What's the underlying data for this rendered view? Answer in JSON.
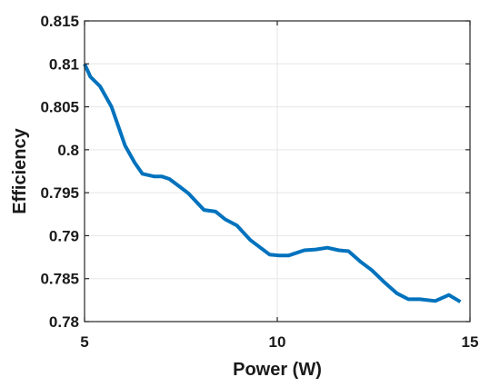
{
  "chart_data": {
    "type": "line",
    "title": "",
    "xlabel": "Power (W)",
    "ylabel": "Efficiency",
    "xlim": [
      5,
      15
    ],
    "ylim": [
      0.78,
      0.815
    ],
    "xticks": [
      5,
      10,
      15
    ],
    "xtick_labels": [
      "5",
      "10",
      "15"
    ],
    "yticks": [
      0.78,
      0.785,
      0.79,
      0.795,
      0.8,
      0.805,
      0.81,
      0.815
    ],
    "ytick_labels": [
      "0.78",
      "0.785",
      "0.79",
      "0.795",
      "0.8",
      "0.805",
      "0.81",
      "0.815"
    ],
    "grid": true,
    "line_color": "#0072BD",
    "series": [
      {
        "x": [
          5.0,
          5.15,
          5.4,
          5.7,
          6.05,
          6.3,
          6.5,
          6.8,
          7.0,
          7.2,
          7.5,
          7.7,
          8.1,
          8.4,
          8.65,
          8.95,
          9.3,
          9.8,
          10.05,
          10.3,
          10.7,
          11.0,
          11.3,
          11.6,
          11.85,
          12.15,
          12.45,
          12.75,
          13.1,
          13.4,
          13.7,
          14.1,
          14.45,
          14.75
        ],
        "y": [
          0.81,
          0.8085,
          0.8074,
          0.805,
          0.8005,
          0.7985,
          0.7972,
          0.7969,
          0.7969,
          0.7966,
          0.7956,
          0.7949,
          0.793,
          0.7928,
          0.7919,
          0.7912,
          0.7895,
          0.7878,
          0.7877,
          0.7877,
          0.7883,
          0.7884,
          0.7886,
          0.7883,
          0.7882,
          0.787,
          0.786,
          0.7847,
          0.7833,
          0.7826,
          0.7826,
          0.7824,
          0.7831,
          0.7823
        ]
      }
    ]
  }
}
